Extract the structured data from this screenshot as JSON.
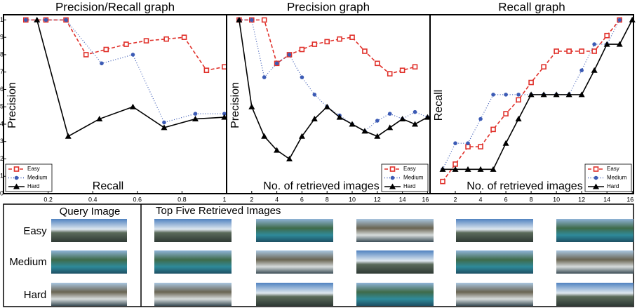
{
  "chart_data": [
    {
      "type": "line",
      "title": "Precision/Recall graph",
      "xlabel": "Recall",
      "ylabel": "Precision",
      "xlim": [
        0,
        1
      ],
      "ylim": [
        0,
        1.03
      ],
      "xticks": [
        0.2,
        0.4,
        0.6,
        0.8,
        1
      ],
      "yticks": [
        0,
        {
          "value": 0.1,
          "label": "1"
        },
        {
          "value": 0.2,
          "label": "2"
        },
        {
          "value": 0.3,
          "label": "3"
        },
        {
          "value": 0.4,
          "label": "4"
        },
        {
          "value": 0.5,
          "label": "5"
        },
        {
          "value": 0.6,
          "label": "6"
        },
        {
          "value": 0.7,
          "label": "7"
        },
        {
          "value": 0.8,
          "label": "8"
        },
        {
          "value": 0.9,
          "label": "9"
        },
        1
      ],
      "legend": "lower left",
      "series": [
        {
          "name": "Easy",
          "color": "#e0302a",
          "dash": "dashed",
          "marker": "square",
          "x": [
            0.1,
            0.19,
            0.28,
            0.37,
            0.46,
            0.55,
            0.64,
            0.73,
            0.81,
            0.91,
            0.99
          ],
          "values": [
            1,
            1,
            1,
            0.8,
            0.83,
            0.86,
            0.88,
            0.89,
            0.9,
            0.71,
            0.73
          ]
        },
        {
          "name": "Medium",
          "color": "#3c5bb5",
          "dash": "dotted",
          "marker": "circle",
          "x": [
            0.1,
            0.19,
            0.28,
            0.44,
            0.58,
            0.72,
            0.86,
            0.99
          ],
          "values": [
            1,
            1,
            1,
            0.75,
            0.8,
            0.41,
            0.46,
            0.46
          ]
        },
        {
          "name": "Hard",
          "color": "#000000",
          "dash": "solid",
          "marker": "triangle",
          "x": [
            0.15,
            0.29,
            0.43,
            0.58,
            0.72,
            0.86,
            0.99
          ],
          "values": [
            1,
            0.33,
            0.43,
            0.5,
            0.38,
            0.43,
            0.44
          ]
        }
      ]
    },
    {
      "type": "line",
      "title": "Precision graph",
      "xlabel": "No. of retrieved images",
      "ylabel": "Precision",
      "x": [
        1,
        2,
        3,
        4,
        5,
        6,
        7,
        8,
        9,
        10,
        11,
        12,
        13,
        14,
        15,
        16
      ],
      "xlim": [
        0,
        16.2
      ],
      "ylim": [
        0,
        1.03
      ],
      "xticks": [
        2,
        4,
        6,
        8,
        10,
        12,
        14,
        16
      ],
      "legend": "lower right",
      "series": [
        {
          "name": "Easy",
          "color": "#e0302a",
          "dash": "dashed",
          "marker": "square",
          "values": [
            1,
            1,
            1,
            0.75,
            0.8,
            0.83,
            0.86,
            0.875,
            0.89,
            0.9,
            0.82,
            0.75,
            0.69,
            0.71,
            0.73,
            null
          ]
        },
        {
          "name": "Medium",
          "color": "#3c5bb5",
          "dash": "dotted",
          "marker": "circle",
          "values": [
            1,
            1,
            0.67,
            0.75,
            0.8,
            0.67,
            0.57,
            0.5,
            0.45,
            0.4,
            0.36,
            0.42,
            0.46,
            0.43,
            0.47,
            0.44
          ]
        },
        {
          "name": "Hard",
          "color": "#000000",
          "dash": "solid",
          "marker": "triangle",
          "values": [
            1,
            0.5,
            0.33,
            0.25,
            0.2,
            0.33,
            0.43,
            0.5,
            0.44,
            0.4,
            0.36,
            0.33,
            0.38,
            0.43,
            0.4,
            0.44
          ]
        }
      ]
    },
    {
      "type": "line",
      "title": "Recall graph",
      "xlabel": "No. of retrieved images",
      "ylabel": "Recall",
      "x": [
        1,
        2,
        3,
        4,
        5,
        6,
        7,
        8,
        9,
        10,
        11,
        12,
        13,
        14,
        15,
        16
      ],
      "xlim": [
        0,
        16.1
      ],
      "ylim": [
        0,
        1.03
      ],
      "xticks": [
        2,
        4,
        6,
        8,
        10,
        12,
        14,
        16
      ],
      "legend": "lower right",
      "series": [
        {
          "name": "Easy",
          "color": "#e0302a",
          "dash": "dashed",
          "marker": "square",
          "values": [
            0.07,
            0.17,
            0.27,
            0.27,
            0.37,
            0.46,
            0.54,
            0.64,
            0.73,
            0.82,
            0.82,
            0.82,
            0.82,
            0.91,
            1,
            null
          ]
        },
        {
          "name": "Medium",
          "color": "#3c5bb5",
          "dash": "dotted",
          "marker": "circle",
          "values": [
            0.14,
            0.29,
            0.29,
            0.43,
            0.57,
            0.57,
            0.57,
            0.57,
            0.57,
            0.57,
            0.57,
            0.71,
            0.86,
            0.86,
            1,
            null
          ]
        },
        {
          "name": "Hard",
          "color": "#000000",
          "dash": "solid",
          "marker": "triangle",
          "values": [
            0.14,
            0.14,
            0.14,
            0.14,
            0.14,
            0.29,
            0.43,
            0.57,
            0.57,
            0.57,
            0.57,
            0.57,
            0.71,
            0.86,
            0.86,
            1
          ]
        }
      ]
    }
  ],
  "figure": {
    "query_header": "Query Image",
    "results_header": "Top Five Retrieved Images",
    "rows": [
      "Easy",
      "Medium",
      "Hard"
    ]
  }
}
